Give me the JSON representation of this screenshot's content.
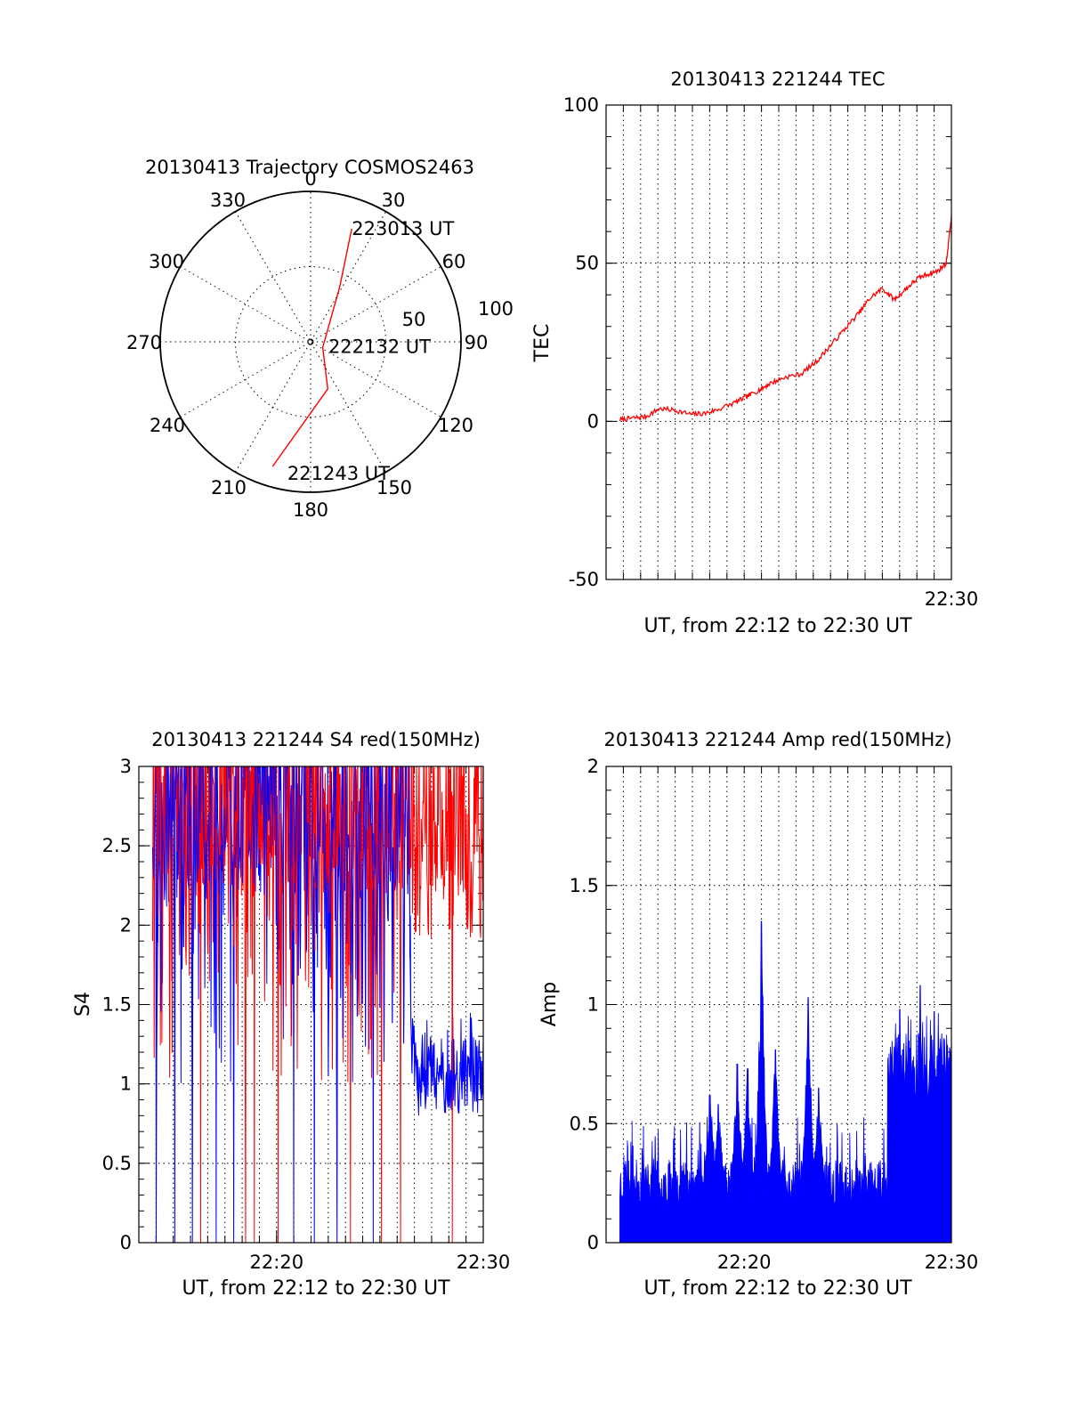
{
  "chart_data": [
    {
      "type": "polar",
      "title": "20130413 Trajectory COSMOS2463",
      "azimuth_labels": [
        "0",
        "30",
        "60",
        "90",
        "120",
        "150",
        "180",
        "210",
        "240",
        "270",
        "300",
        "330"
      ],
      "radial_labels": [
        "50",
        "100"
      ],
      "trajectory": {
        "color": "#ff0000",
        "points": [
          {
            "az": 197,
            "el": 12
          },
          {
            "az": 160,
            "el": 60
          },
          {
            "az": 115,
            "el": 82
          },
          {
            "az": 28,
            "el": 53
          },
          {
            "az": 20,
            "el": 18
          }
        ]
      },
      "annotations": [
        {
          "text": "223013 UT",
          "az": 20,
          "el": 18
        },
        {
          "text": "222132 UT",
          "az": 105,
          "el": 79
        },
        {
          "text": "221243 UT",
          "az": 190,
          "el": 10
        }
      ]
    },
    {
      "type": "line",
      "title": "20130413 221244 TEC",
      "ylabel": "TEC",
      "xlabel": "UT, from 22:12 to 22:30 UT",
      "ylim": [
        -50,
        100
      ],
      "yticks": [
        "-50",
        "0",
        "50",
        "100"
      ],
      "xlim_minutes": [
        22.0,
        42.0
      ],
      "xticks": [
        {
          "value": 42,
          "label": "22:30"
        }
      ],
      "grid": "dotted",
      "series": [
        {
          "color": "#ff0000",
          "x": [
            22.8,
            23.5,
            24.3,
            25.1,
            26.0,
            26.9,
            27.7,
            28.5,
            29.5,
            30.2,
            30.9,
            31.5,
            32.4,
            33.3,
            34.2,
            35.0,
            35.8,
            36.6,
            37.3,
            38.0,
            38.7,
            39.4,
            40.0,
            40.6,
            41.2,
            41.7,
            42.0
          ],
          "y": [
            0.5,
            1.0,
            1.5,
            4.0,
            3.5,
            2.2,
            2.5,
            3.8,
            6.0,
            8.0,
            10.0,
            12.0,
            14.0,
            15.0,
            19.0,
            24.0,
            29.0,
            34.0,
            39.0,
            42.0,
            38.5,
            42.0,
            45.0,
            46.5,
            47.5,
            50.0,
            65.0
          ]
        }
      ]
    },
    {
      "type": "line",
      "title": "20130413 221244 S4 red(150MHz)",
      "ylabel": "S4",
      "xlabel": "UT, from 22:12 to 22:30 UT",
      "ylim": [
        0,
        3
      ],
      "yticks": [
        "0",
        "0.5",
        "1",
        "1.5",
        "2",
        "2.5",
        "3"
      ],
      "xlim_minutes": [
        22.0,
        42.0
      ],
      "xticks": [
        {
          "value": 30,
          "label": "22:20"
        },
        {
          "value": 42,
          "label": "22:30"
        }
      ],
      "grid": "dotted",
      "series": [
        {
          "name": "blue",
          "color": "#0000ff"
        },
        {
          "name": "red",
          "color": "#ff0000"
        }
      ],
      "features": {
        "blue_low_segment": {
          "x_start": 37.8,
          "x_end": 42.0,
          "y_range": [
            0.8,
            1.3
          ]
        },
        "blue_dips_to_zero_x": [
          23.0,
          24.1,
          25.1,
          26.5,
          27.5,
          31.0,
          32.2,
          33.5,
          35.6
        ],
        "red_dips_to_zero_x": [
          25.6,
          28.2,
          28.7,
          30.1,
          34.3,
          36.1,
          37.2,
          40.2
        ],
        "red_dominant_after_x": 38.0
      }
    },
    {
      "type": "bar",
      "title": "20130413 221244 Amp red(150MHz)",
      "ylabel": "Amp",
      "xlabel": "UT, from 22:12 to 22:30 UT",
      "ylim": [
        0,
        2
      ],
      "yticks": [
        "0",
        "0.5",
        "1",
        "1.5",
        "2"
      ],
      "xlim_minutes": [
        22.0,
        42.0
      ],
      "xticks": [
        {
          "value": 30,
          "label": "22:20"
        },
        {
          "value": 42,
          "label": "22:30"
        }
      ],
      "grid": "dotted",
      "series": [
        {
          "color": "#0000ff"
        }
      ],
      "features": {
        "data_start_x": 22.8,
        "baseline_level": 0.25,
        "peaks": [
          {
            "x": 28.0,
            "y": 0.62
          },
          {
            "x": 28.5,
            "y": 0.58
          },
          {
            "x": 29.6,
            "y": 0.75
          },
          {
            "x": 30.2,
            "y": 0.73
          },
          {
            "x": 31.0,
            "y": 1.35
          },
          {
            "x": 31.8,
            "y": 0.81
          },
          {
            "x": 33.7,
            "y": 1.03
          },
          {
            "x": 34.3,
            "y": 0.65
          }
        ],
        "step_up_x": 38.3,
        "upper_level": 0.8,
        "upper_peaks": [
          {
            "x": 39.0,
            "y": 0.98
          },
          {
            "x": 40.2,
            "y": 1.08
          },
          {
            "x": 41.0,
            "y": 0.97
          }
        ]
      }
    }
  ]
}
